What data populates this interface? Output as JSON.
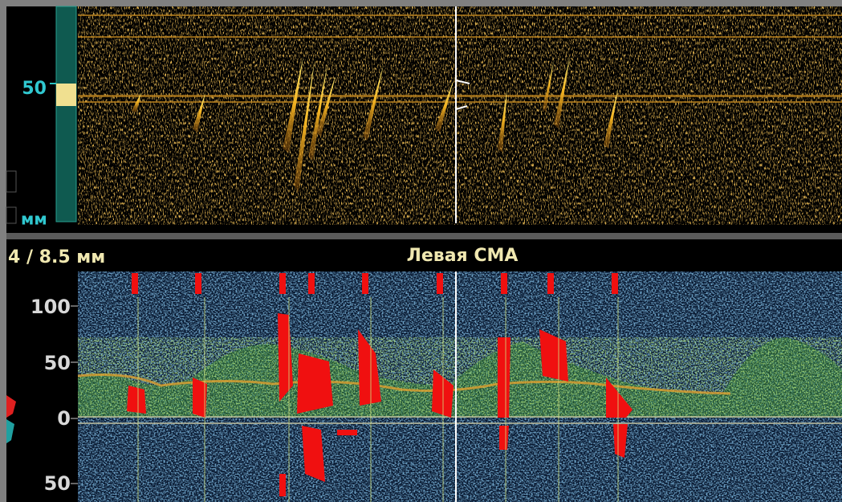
{
  "mmode": {
    "depth_label": "50",
    "unit": "мм"
  },
  "status": {
    "gate": "4 / 8.5 мм",
    "vessel": "Левая СМА"
  },
  "spectrum": {
    "scale_labels": [
      "100",
      "50",
      "0",
      "50"
    ]
  }
}
